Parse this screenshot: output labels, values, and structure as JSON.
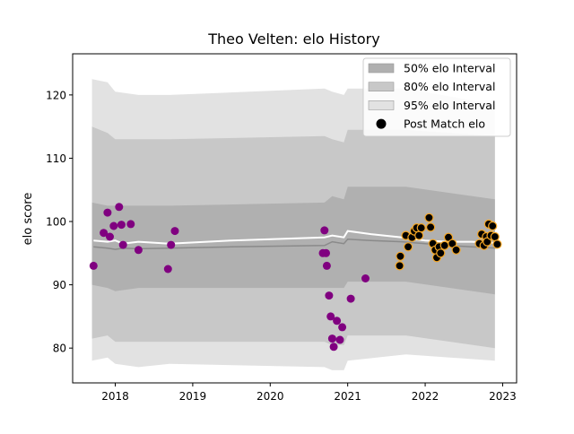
{
  "chart_data": {
    "type": "scatter",
    "title": "Theo Velten: elo History",
    "xlabel": "",
    "ylabel": "elo score",
    "xlim": [
      2017.45,
      2023.18
    ],
    "ylim": [
      74.5,
      126.5
    ],
    "xticks": [
      2018,
      2019,
      2020,
      2021,
      2022,
      2023
    ],
    "xtick_labels": [
      "2018",
      "2019",
      "2020",
      "2021",
      "2022",
      "2023"
    ],
    "yticks": [
      80,
      90,
      100,
      110,
      120
    ],
    "ytick_labels": [
      "80",
      "90",
      "100",
      "110",
      "120"
    ],
    "grid": false,
    "legend_position": "top-right",
    "legend": [
      {
        "label": "50% elo Interval",
        "kind": "patch",
        "color": "#b0b0b0"
      },
      {
        "label": "80% elo Interval",
        "kind": "patch",
        "color": "#c8c8c8"
      },
      {
        "label": "95% elo Interval",
        "kind": "patch",
        "color": "#e2e2e2"
      },
      {
        "label": "Post Match elo",
        "kind": "marker",
        "color": "#000000"
      }
    ],
    "bands": {
      "x": [
        2017.7,
        2017.9,
        2018.0,
        2018.3,
        2018.7,
        2020.7,
        2020.8,
        2020.95,
        2021.0,
        2021.75,
        2022.9
      ],
      "p95_upper": [
        122.5,
        122.0,
        120.5,
        120.0,
        120.0,
        121.0,
        120.5,
        120.0,
        121.0,
        121.0,
        118.5
      ],
      "p95_lower": [
        78.0,
        78.5,
        77.5,
        77.0,
        77.5,
        77.0,
        76.5,
        76.5,
        78.0,
        79.0,
        78.0
      ],
      "p80_upper": [
        115.0,
        114.0,
        113.0,
        113.0,
        113.0,
        113.5,
        113.0,
        112.5,
        114.5,
        114.5,
        113.5
      ],
      "p80_lower": [
        81.5,
        82.0,
        81.0,
        81.0,
        81.0,
        81.0,
        80.5,
        80.5,
        82.0,
        82.0,
        80.0
      ],
      "p50_upper": [
        103.0,
        102.5,
        102.5,
        102.5,
        102.5,
        103.0,
        104.0,
        103.5,
        105.5,
        105.5,
        103.5
      ],
      "p50_lower": [
        90.0,
        89.5,
        89.0,
        89.5,
        89.5,
        89.5,
        89.5,
        89.5,
        90.5,
        90.5,
        88.5
      ]
    },
    "series": [
      {
        "name": "Post Match elo",
        "type": "scatter",
        "color": "#000000",
        "edgecolor": "#f5a623",
        "x": [
          2021.67,
          2021.68,
          2021.75,
          2021.78,
          2021.83,
          2021.86,
          2021.89,
          2021.92,
          2021.95,
          2022.05,
          2022.07,
          2022.1,
          2022.13,
          2022.15,
          2022.18,
          2022.2,
          2022.25,
          2022.3,
          2022.35,
          2022.4,
          2022.7,
          2022.73,
          2022.76,
          2022.79,
          2022.8,
          2022.82,
          2022.85,
          2022.87,
          2022.9,
          2022.93
        ],
        "y": [
          93.0,
          94.5,
          97.8,
          96.0,
          97.5,
          98.5,
          99.0,
          97.8,
          99.0,
          100.6,
          99.1,
          96.5,
          95.5,
          94.3,
          96.0,
          95.0,
          96.2,
          97.5,
          96.5,
          95.5,
          96.5,
          98.0,
          96.2,
          97.6,
          96.8,
          99.6,
          97.8,
          99.3,
          97.6,
          96.4
        ]
      },
      {
        "name": "",
        "type": "scatter",
        "color": "#800080",
        "x": [
          2017.72,
          2017.85,
          2017.9,
          2017.93,
          2017.98,
          2018.05,
          2018.08,
          2018.1,
          2018.2,
          2018.3,
          2018.68,
          2018.72,
          2018.77,
          2020.68,
          2020.7,
          2020.72,
          2020.73,
          2020.76,
          2020.78,
          2020.8,
          2020.82,
          2020.86,
          2020.9,
          2020.93,
          2021.04,
          2021.23
        ],
        "y": [
          93.0,
          98.2,
          101.4,
          97.6,
          99.3,
          102.3,
          99.5,
          96.3,
          99.6,
          95.5,
          92.5,
          96.3,
          98.5,
          95.0,
          98.6,
          95.0,
          93.0,
          88.3,
          85.0,
          81.5,
          80.2,
          84.3,
          81.3,
          83.3,
          87.8,
          91.0
        ]
      },
      {
        "name": "",
        "type": "line",
        "color": "#ffffff",
        "x": [
          2017.72,
          2017.9,
          2018.0,
          2018.1,
          2018.3,
          2018.7,
          2019.5,
          2020.7,
          2020.8,
          2020.95,
          2021.0,
          2021.3,
          2021.7,
          2022.0,
          2022.3,
          2022.6,
          2022.93
        ],
        "y": [
          97.0,
          96.8,
          97.0,
          96.5,
          96.8,
          96.5,
          97.0,
          97.5,
          97.8,
          97.5,
          98.5,
          98.0,
          97.5,
          97.0,
          96.8,
          96.8,
          96.6
        ]
      },
      {
        "name": "",
        "type": "line",
        "color": "#8a8a8a",
        "x": [
          2017.72,
          2017.9,
          2018.0,
          2018.1,
          2018.3,
          2018.7,
          2019.5,
          2020.7,
          2020.8,
          2020.95,
          2021.0,
          2021.3,
          2021.7,
          2022.0,
          2022.3,
          2022.6,
          2022.93
        ],
        "y": [
          96.0,
          95.8,
          95.6,
          95.8,
          95.7,
          95.8,
          96.0,
          96.2,
          96.8,
          96.5,
          97.2,
          97.0,
          96.8,
          96.5,
          96.2,
          96.0,
          95.8
        ]
      }
    ]
  }
}
